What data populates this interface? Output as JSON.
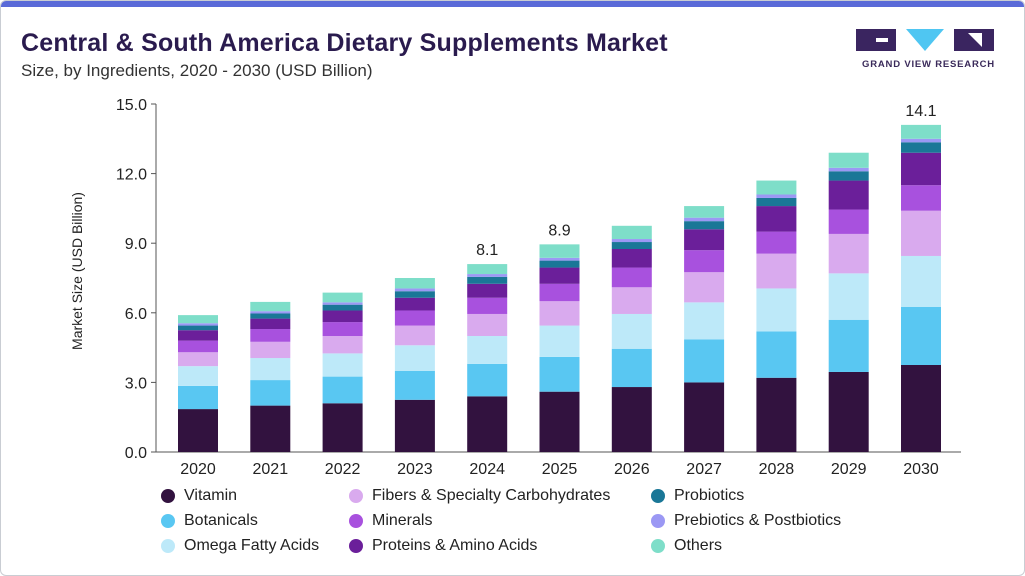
{
  "header": {
    "title": "Central & South America Dietary Supplements Market",
    "subtitle": "Size, by Ingredients, 2020 - 2030 (USD Billion)",
    "logo_text": "GRAND VIEW RESEARCH"
  },
  "colors": {
    "Vitamin": "#32123f",
    "Botanicals": "#59c7f2",
    "Omega Fatty Acids": "#bde9f9",
    "Fibers & Specialty Carbohydrates": "#d9aaee",
    "Minerals": "#a851de",
    "Proteins & Amino Acids": "#6b1f9a",
    "Probiotics": "#1a7797",
    "Prebiotics & Postbiotics": "#9b98f4",
    "Others": "#7edec9"
  },
  "chart_data": {
    "type": "bar",
    "stacked": true,
    "ylabel": "Market Size (USD Billion)",
    "ylim": [
      0,
      15
    ],
    "yticks": [
      "0.0",
      "3.0",
      "6.0",
      "9.0",
      "12.0",
      "15.0"
    ],
    "categories": [
      "2020",
      "2021",
      "2022",
      "2023",
      "2024",
      "2025",
      "2026",
      "2027",
      "2028",
      "2029",
      "2030"
    ],
    "series": [
      {
        "name": "Vitamin",
        "values": [
          1.85,
          2.0,
          2.1,
          2.25,
          2.4,
          2.6,
          2.8,
          3.0,
          3.2,
          3.45,
          3.75
        ]
      },
      {
        "name": "Botanicals",
        "values": [
          1.0,
          1.1,
          1.15,
          1.25,
          1.4,
          1.5,
          1.65,
          1.85,
          2.0,
          2.25,
          2.5
        ]
      },
      {
        "name": "Omega Fatty Acids",
        "values": [
          0.85,
          0.95,
          1.0,
          1.1,
          1.2,
          1.35,
          1.5,
          1.6,
          1.85,
          2.0,
          2.2
        ]
      },
      {
        "name": "Fibers & Specialty Carbohydrates",
        "values": [
          0.6,
          0.7,
          0.75,
          0.85,
          0.95,
          1.05,
          1.15,
          1.3,
          1.5,
          1.7,
          1.95
        ]
      },
      {
        "name": "Minerals",
        "values": [
          0.5,
          0.55,
          0.6,
          0.65,
          0.7,
          0.75,
          0.85,
          0.95,
          0.95,
          1.05,
          1.1
        ]
      },
      {
        "name": "Proteins & Amino Acids",
        "values": [
          0.45,
          0.45,
          0.5,
          0.55,
          0.6,
          0.7,
          0.8,
          0.9,
          1.1,
          1.25,
          1.4
        ]
      },
      {
        "name": "Probiotics",
        "values": [
          0.2,
          0.22,
          0.25,
          0.28,
          0.3,
          0.3,
          0.3,
          0.35,
          0.35,
          0.4,
          0.45
        ]
      },
      {
        "name": "Prebiotics & Postbiotics",
        "values": [
          0.1,
          0.1,
          0.1,
          0.12,
          0.12,
          0.12,
          0.13,
          0.15,
          0.15,
          0.15,
          0.15
        ]
      },
      {
        "name": "Others",
        "values": [
          0.35,
          0.4,
          0.42,
          0.45,
          0.43,
          0.58,
          0.57,
          0.5,
          0.6,
          0.65,
          0.6
        ]
      }
    ],
    "total_labels": [
      {
        "category": "2024",
        "label": "8.1"
      },
      {
        "category": "2025",
        "label": "8.9"
      },
      {
        "category": "2030",
        "label": "14.1"
      }
    ],
    "legend": {
      "placement": "bottom",
      "columns": [
        [
          "Vitamin",
          "Botanicals",
          "Omega Fatty Acids"
        ],
        [
          "Fibers & Specialty Carbohydrates",
          "Minerals",
          "Proteins & Amino Acids"
        ],
        [
          "Probiotics",
          "Prebiotics & Postbiotics",
          "Others"
        ]
      ]
    },
    "grid": false
  }
}
